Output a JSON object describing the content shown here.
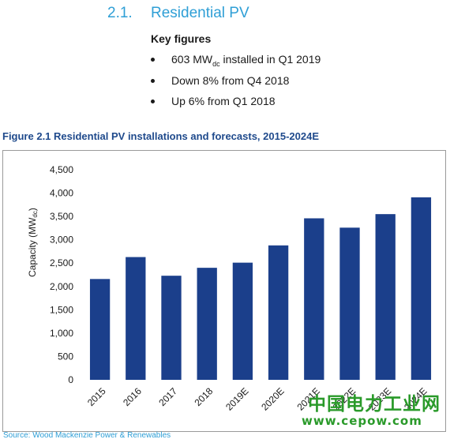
{
  "section": {
    "number": "2.1.",
    "title": "Residential PV"
  },
  "key_figures": {
    "title": "Key figures",
    "items": [
      {
        "pre": "603 MW",
        "sub": "dc",
        "post": " installed in Q1 2019"
      },
      {
        "pre": "Down 8% from Q4 2018",
        "sub": "",
        "post": ""
      },
      {
        "pre": "Up 6% from Q1 2018",
        "sub": "",
        "post": ""
      }
    ]
  },
  "figure_title": "Figure 2.1 Residential PV installations and forecasts, 2015-2024E",
  "source": "Source: Wood Mackenzie Power & Renewables",
  "watermark": {
    "line1": "中国电力工业网",
    "line2": "www.cepow.com"
  },
  "colors": {
    "bar": "#1b3f8b",
    "accent": "#2f9fd6",
    "figure_title": "#1f4a8c",
    "watermark": "#2a9a2a"
  },
  "chart_data": {
    "type": "bar",
    "categories": [
      "2015",
      "2016",
      "2017",
      "2018",
      "2019E",
      "2020E",
      "2021E",
      "2022E",
      "2023E",
      "2024E"
    ],
    "values": [
      2160,
      2630,
      2230,
      2400,
      2510,
      2880,
      3460,
      3260,
      3550,
      3910
    ],
    "ylabel": "Capacity (MW",
    "ylabel_sub": "dc",
    "ylabel_end": ")",
    "ylim": [
      0,
      4500
    ],
    "yticks": [
      0,
      500,
      1000,
      1500,
      2000,
      2500,
      3000,
      3500,
      4000,
      4500
    ],
    "ytick_labels": [
      "0",
      "500",
      "1,000",
      "1,500",
      "2,000",
      "2,500",
      "3,000",
      "3,500",
      "4,000",
      "4,500"
    ],
    "grid": false,
    "legend": "none"
  }
}
